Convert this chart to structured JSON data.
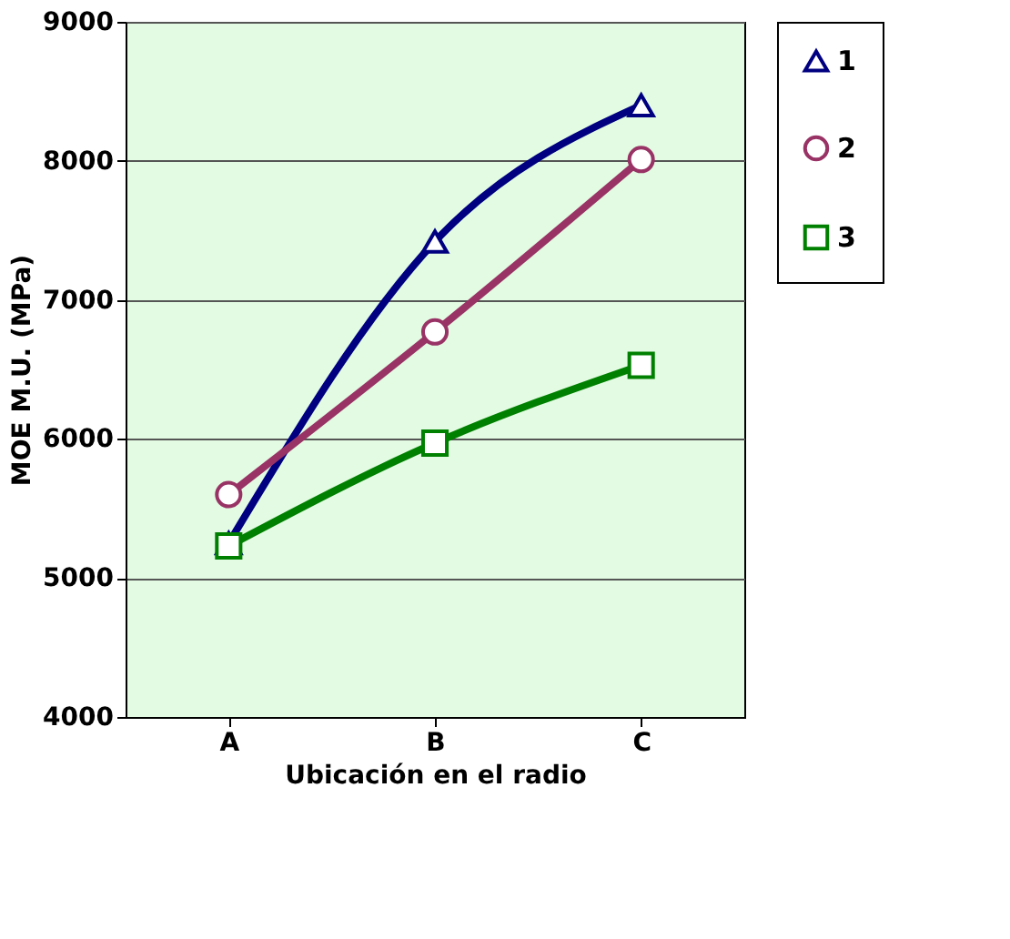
{
  "chart_data": {
    "type": "line",
    "xlabel": "Ubicación en el radio",
    "ylabel": "MOE M.U. (MPa)",
    "categories": [
      "A",
      "B",
      "C"
    ],
    "series": [
      {
        "name": "1",
        "color": "#000080",
        "marker": "triangle",
        "values": [
          5250,
          7420,
          8400
        ]
      },
      {
        "name": "2",
        "color": "#993366",
        "marker": "circle",
        "values": [
          5600,
          6770,
          8010
        ]
      },
      {
        "name": "3",
        "color": "#008000",
        "marker": "square",
        "values": [
          5230,
          5970,
          6530
        ]
      }
    ],
    "ylim": [
      4000,
      9000
    ],
    "yticks": [
      4000,
      5000,
      6000,
      7000,
      8000,
      9000
    ],
    "grid": "y",
    "legend": "right",
    "line_style": "solid"
  }
}
